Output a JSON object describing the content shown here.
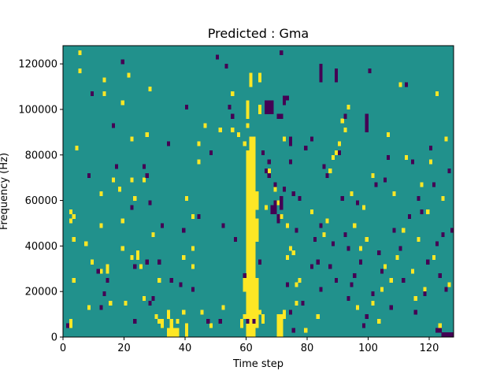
{
  "chart_data": {
    "type": "heatmap",
    "title": "Predicted : Gma",
    "xlabel": "Time step",
    "ylabel": "Frequency (Hz)",
    "xlim": [
      0,
      128
    ],
    "ylim": [
      0,
      128000
    ],
    "grid": false,
    "legend": "none",
    "x_ticks": [
      0,
      20,
      40,
      60,
      80,
      100,
      120
    ],
    "x_tick_labels": [
      "0",
      "20",
      "40",
      "60",
      "80",
      "100",
      "120"
    ],
    "y_ticks": [
      0,
      20000,
      40000,
      60000,
      80000,
      100000,
      120000
    ],
    "y_tick_labels": [
      "0",
      "20000",
      "40000",
      "60000",
      "80000",
      "100000",
      "120000"
    ],
    "n_time_steps": 128,
    "n_freq_bins": 64,
    "freq_bin_hz": 2000,
    "colors": {
      "background": "#21918c",
      "high": "#fde725",
      "low": "#440154"
    },
    "cells": {
      "high": [
        [
          2,
          2
        ],
        [
          2,
          3
        ],
        [
          3,
          12
        ],
        [
          3,
          21
        ],
        [
          2,
          25
        ],
        [
          3,
          26
        ],
        [
          2,
          27
        ],
        [
          4,
          41
        ],
        [
          5,
          58
        ],
        [
          5,
          62
        ],
        [
          7,
          20
        ],
        [
          8,
          6
        ],
        [
          9,
          16
        ],
        [
          12,
          14
        ],
        [
          12,
          24
        ],
        [
          12,
          31
        ],
        [
          13,
          53
        ],
        [
          13,
          56
        ],
        [
          14,
          14
        ],
        [
          14,
          15
        ],
        [
          15,
          7
        ],
        [
          16,
          34
        ],
        [
          18,
          32
        ],
        [
          19,
          19
        ],
        [
          19,
          25
        ],
        [
          19,
          51
        ],
        [
          20,
          7
        ],
        [
          21,
          57
        ],
        [
          22,
          17
        ],
        [
          22,
          34
        ],
        [
          22,
          43
        ],
        [
          23,
          30
        ],
        [
          24,
          17
        ],
        [
          24,
          18
        ],
        [
          25,
          15
        ],
        [
          26,
          8
        ],
        [
          26,
          34
        ],
        [
          27,
          44
        ],
        [
          28,
          54
        ],
        [
          29,
          22
        ],
        [
          30,
          4
        ],
        [
          31,
          12
        ],
        [
          31,
          3
        ],
        [
          32,
          2
        ],
        [
          32,
          3
        ],
        [
          34,
          4
        ],
        [
          34,
          5
        ],
        [
          34,
          0
        ],
        [
          34,
          1
        ],
        [
          35,
          2
        ],
        [
          35,
          3
        ],
        [
          35,
          1
        ],
        [
          35,
          0
        ],
        [
          36,
          0
        ],
        [
          36,
          1
        ],
        [
          37,
          0
        ],
        [
          37,
          1
        ],
        [
          37,
          3
        ],
        [
          39,
          5
        ],
        [
          39,
          17
        ],
        [
          40,
          30
        ],
        [
          40,
          2
        ],
        [
          40,
          1
        ],
        [
          40,
          0
        ],
        [
          42,
          15
        ],
        [
          42,
          19
        ],
        [
          42,
          26
        ],
        [
          44,
          38
        ],
        [
          44,
          42
        ],
        [
          45,
          5
        ],
        [
          46,
          46
        ],
        [
          48,
          2
        ],
        [
          51,
          45
        ],
        [
          52,
          6
        ],
        [
          55,
          45
        ],
        [
          55,
          53
        ],
        [
          57,
          44
        ],
        [
          59,
          42
        ],
        [
          59,
          4
        ],
        [
          60,
          46
        ],
        [
          60,
          48
        ],
        [
          61,
          37
        ],
        [
          61,
          39
        ],
        [
          62,
          40
        ],
        [
          62,
          41
        ],
        [
          64,
          5
        ],
        [
          65,
          40
        ],
        [
          66,
          28
        ],
        [
          67,
          36
        ],
        [
          69,
          32
        ],
        [
          70,
          29
        ],
        [
          71,
          26
        ],
        [
          72,
          43
        ],
        [
          73,
          17
        ],
        [
          73,
          24
        ],
        [
          74,
          19
        ],
        [
          75,
          18
        ],
        [
          76,
          7
        ],
        [
          76,
          11
        ],
        [
          77,
          12
        ],
        [
          79,
          1
        ],
        [
          81,
          27
        ],
        [
          83,
          4
        ],
        [
          85,
          22
        ],
        [
          86,
          25
        ],
        [
          87,
          36
        ],
        [
          88,
          39
        ],
        [
          89,
          40
        ],
        [
          90,
          42
        ],
        [
          91,
          47
        ],
        [
          92,
          45
        ],
        [
          93,
          50
        ],
        [
          94,
          31
        ],
        [
          95,
          24
        ],
        [
          96,
          6
        ],
        [
          97,
          19
        ],
        [
          98,
          28
        ],
        [
          99,
          21
        ],
        [
          101,
          7
        ],
        [
          101,
          35
        ],
        [
          103,
          3
        ],
        [
          104,
          10
        ],
        [
          105,
          15
        ],
        [
          106,
          44
        ],
        [
          107,
          12
        ],
        [
          108,
          31
        ],
        [
          109,
          17
        ],
        [
          110,
          55
        ],
        [
          111,
          23
        ],
        [
          112,
          39
        ],
        [
          113,
          26
        ],
        [
          114,
          14
        ],
        [
          115,
          8
        ],
        [
          116,
          21
        ],
        [
          117,
          33
        ],
        [
          118,
          10
        ],
        [
          119,
          27
        ],
        [
          120,
          38
        ],
        [
          121,
          17
        ],
        [
          122,
          53
        ],
        [
          123,
          2
        ],
        [
          124,
          30
        ],
        [
          125,
          43
        ],
        [
          126,
          11
        ]
      ],
      "high_runs": [
        [
          60,
          0,
          40
        ],
        [
          61,
          0,
          43
        ],
        [
          62,
          0,
          43
        ],
        [
          63,
          2,
          12
        ],
        [
          62,
          12,
          18
        ],
        [
          63,
          21,
          25
        ],
        [
          63,
          28,
          31
        ],
        [
          70,
          0,
          4
        ],
        [
          71,
          0,
          4
        ],
        [
          72,
          4,
          5
        ],
        [
          58,
          2,
          3
        ],
        [
          59,
          10,
          12
        ],
        [
          60,
          49,
          51
        ],
        [
          61,
          55,
          57
        ],
        [
          64,
          49,
          50
        ],
        [
          64,
          56,
          57
        ],
        [
          65,
          3,
          4
        ]
      ],
      "low": [
        [
          1,
          2
        ],
        [
          8,
          35
        ],
        [
          9,
          53
        ],
        [
          11,
          14
        ],
        [
          12,
          6
        ],
        [
          13,
          9
        ],
        [
          14,
          12
        ],
        [
          16,
          46
        ],
        [
          17,
          37
        ],
        [
          19,
          60
        ],
        [
          22,
          28
        ],
        [
          23,
          15
        ],
        [
          23,
          3
        ],
        [
          26,
          37
        ],
        [
          27,
          35
        ],
        [
          27,
          16
        ],
        [
          28,
          7
        ],
        [
          28,
          29
        ],
        [
          29,
          8
        ],
        [
          31,
          16
        ],
        [
          32,
          24
        ],
        [
          34,
          42
        ],
        [
          35,
          12
        ],
        [
          38,
          11
        ],
        [
          39,
          23
        ],
        [
          40,
          50
        ],
        [
          42,
          10
        ],
        [
          44,
          26
        ],
        [
          47,
          3
        ],
        [
          48,
          40
        ],
        [
          50,
          61
        ],
        [
          51,
          3
        ],
        [
          52,
          24
        ],
        [
          53,
          59
        ],
        [
          54,
          50
        ],
        [
          55,
          48
        ],
        [
          56,
          21
        ],
        [
          59,
          13
        ],
        [
          60,
          3
        ],
        [
          62,
          3
        ],
        [
          64,
          16
        ],
        [
          65,
          40
        ],
        [
          66,
          36
        ],
        [
          67,
          38
        ],
        [
          67,
          35
        ],
        [
          68,
          27
        ],
        [
          68,
          28
        ],
        [
          69,
          33
        ],
        [
          70,
          48
        ],
        [
          71,
          48
        ],
        [
          71,
          62
        ],
        [
          72,
          32
        ],
        [
          73,
          11
        ],
        [
          74,
          5
        ],
        [
          74,
          38
        ],
        [
          75,
          1
        ],
        [
          75,
          31
        ],
        [
          76,
          23
        ],
        [
          77,
          30
        ],
        [
          78,
          7
        ],
        [
          79,
          41
        ],
        [
          81,
          15
        ],
        [
          81,
          43
        ],
        [
          82,
          21
        ],
        [
          83,
          16
        ],
        [
          84,
          10
        ],
        [
          84,
          24
        ],
        [
          85,
          37
        ],
        [
          86,
          35
        ],
        [
          87,
          15
        ],
        [
          88,
          20
        ],
        [
          89,
          12
        ],
        [
          90,
          40
        ],
        [
          91,
          30
        ],
        [
          92,
          48
        ],
        [
          92,
          22
        ],
        [
          93,
          19
        ],
        [
          93,
          8
        ],
        [
          94,
          11
        ],
        [
          95,
          13
        ],
        [
          96,
          29
        ],
        [
          97,
          16
        ],
        [
          98,
          2
        ],
        [
          99,
          4
        ],
        [
          100,
          58
        ],
        [
          101,
          9
        ],
        [
          102,
          33
        ],
        [
          103,
          18
        ],
        [
          104,
          14
        ],
        [
          105,
          34
        ],
        [
          106,
          39
        ],
        [
          107,
          6
        ],
        [
          108,
          23
        ],
        [
          110,
          19
        ],
        [
          111,
          12
        ],
        [
          112,
          55
        ],
        [
          113,
          26
        ],
        [
          114,
          38
        ],
        [
          115,
          5
        ],
        [
          116,
          30
        ],
        [
          117,
          27
        ],
        [
          118,
          9
        ],
        [
          119,
          16
        ],
        [
          120,
          41
        ],
        [
          121,
          33
        ],
        [
          122,
          20
        ],
        [
          123,
          13
        ],
        [
          124,
          22
        ],
        [
          125,
          10
        ],
        [
          126,
          36
        ],
        [
          127,
          23
        ],
        [
          127,
          0
        ],
        [
          126,
          0
        ],
        [
          125,
          0
        ],
        [
          124,
          0
        ],
        [
          123,
          1
        ],
        [
          122,
          1
        ]
      ],
      "low_runs": [
        [
          66,
          49,
          51
        ],
        [
          67,
          49,
          51
        ],
        [
          68,
          49,
          51
        ],
        [
          69,
          27,
          29
        ],
        [
          70,
          25,
          26
        ],
        [
          71,
          28,
          30
        ],
        [
          72,
          51,
          52
        ],
        [
          73,
          52,
          52
        ],
        [
          74,
          42,
          43
        ],
        [
          84,
          56,
          59
        ],
        [
          89,
          56,
          58
        ],
        [
          99,
          45,
          48
        ]
      ]
    }
  }
}
